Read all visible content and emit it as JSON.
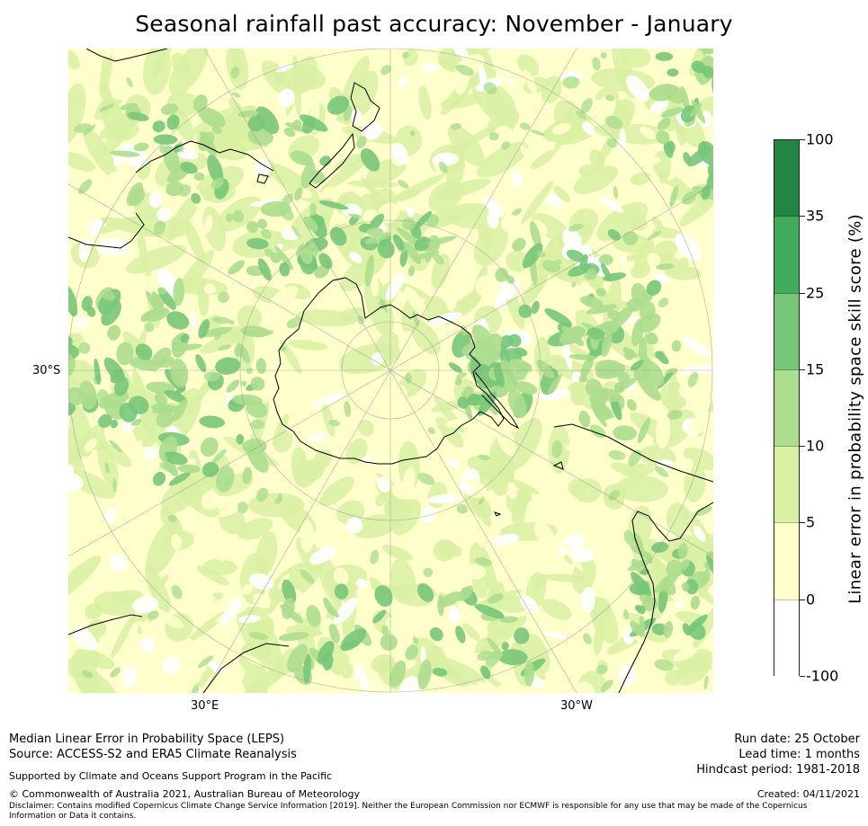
{
  "title": "Seasonal rainfall past accuracy: November - January",
  "map": {
    "axis_labels": {
      "left": "30°S",
      "bottom_left": "30°E",
      "bottom_right": "30°W"
    },
    "colors": {
      "ocean_base": "#ffffcc",
      "gridline": "#9a9a9a",
      "coastline": "#000000"
    }
  },
  "colorbar": {
    "label": "Linear error in probability space skill score (%)",
    "ticks": [
      "100",
      "35",
      "25",
      "15",
      "10",
      "5",
      "0",
      "-100"
    ],
    "bins": [
      {
        "range": "35-100",
        "color": "#238443"
      },
      {
        "range": "25-35",
        "color": "#41ab5d"
      },
      {
        "range": "15-25",
        "color": "#78c679"
      },
      {
        "range": "10-15",
        "color": "#addd8e"
      },
      {
        "range": "5-10",
        "color": "#d9f0a3"
      },
      {
        "range": "0-5",
        "color": "#ffffcc"
      },
      {
        "range": "-100-0",
        "color": "#ffffff"
      }
    ]
  },
  "footer": {
    "line1": "Median Linear Error in Probability Space (LEPS)",
    "line2": "Source: ACCESS-S2 and ERA5 Climate Reanalysis",
    "support": "Supported by Climate and Oceans Support Program in the Pacific",
    "copyright": "© Commonwealth of Australia 2021, Australian Bureau of Meteorology",
    "disclaimer": "Disclaimer: Contains modified Copernicus Climate Change Service Information [2019]. Neither the European Commission nor ECMWF is responsible for any use that may be made of the Copernicus Information or Data it contains.",
    "run_date": "Run date: 25 October",
    "lead_time": "Lead time: 1 months",
    "hindcast": "Hindcast period: 1981-2018",
    "created": "Created: 04/11/2021"
  }
}
